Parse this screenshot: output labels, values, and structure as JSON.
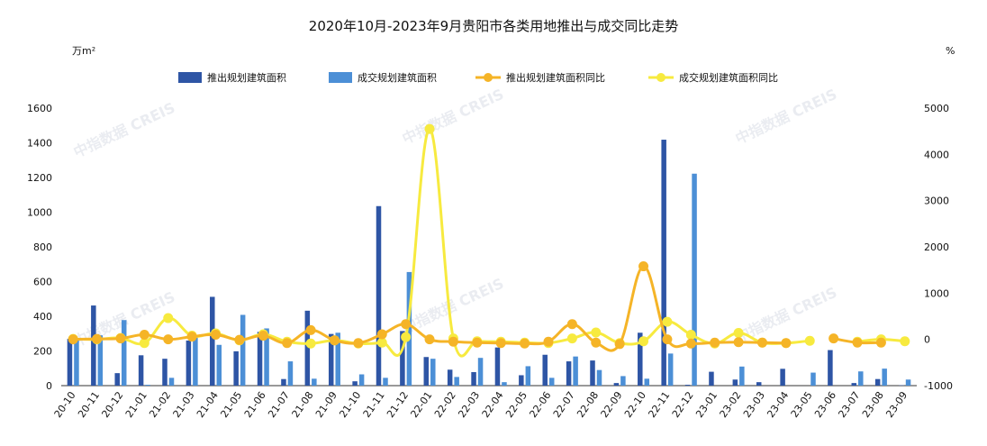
{
  "chart_data": {
    "type": "bar+line",
    "title": "2020年10月-2023年9月贵阳市各类用地推出与成交同比走势",
    "left_unit": "万m²",
    "right_unit": "%",
    "watermark": "中指数据 CREIS",
    "categories": [
      "20-10",
      "20-11",
      "20-12",
      "21-01",
      "21-02",
      "21-03",
      "21-04",
      "21-05",
      "21-06",
      "21-07",
      "21-08",
      "21-09",
      "21-10",
      "21-11",
      "21-12",
      "22-01",
      "22-02",
      "22-03",
      "22-04",
      "22-05",
      "22-06",
      "22-07",
      "22-08",
      "22-09",
      "22-10",
      "22-11",
      "22-12",
      "23-01",
      "23-02",
      "23-03",
      "23-04",
      "23-05",
      "23-06",
      "23-07",
      "23-08",
      "23-09"
    ],
    "y_left": {
      "min": 0,
      "max": 1600,
      "ticks": [
        0,
        200,
        400,
        600,
        800,
        1000,
        1200,
        1400,
        1600
      ]
    },
    "y_right": {
      "min": -1000,
      "max": 5000,
      "ticks": [
        -1000,
        0,
        1000,
        2000,
        3000,
        4000,
        5000
      ]
    },
    "series": [
      {
        "name": "推出规划建筑面积",
        "type": "bar",
        "axis": "left",
        "color": "#2e55a5",
        "values": [
          270,
          462,
          72,
          175,
          155,
          260,
          512,
          198,
          310,
          38,
          432,
          298,
          25,
          1035,
          315,
          165,
          92,
          78,
          220,
          60,
          178,
          140,
          145,
          15,
          305,
          1418,
          5,
          80,
          35,
          20,
          97,
          0,
          205,
          15,
          38,
          2
        ]
      },
      {
        "name": "成交规划建筑面积",
        "type": "bar",
        "axis": "left",
        "color": "#4c8fd6",
        "values": [
          275,
          290,
          378,
          5,
          45,
          290,
          235,
          408,
          330,
          140,
          40,
          305,
          65,
          45,
          655,
          155,
          50,
          160,
          20,
          112,
          45,
          168,
          90,
          55,
          40,
          185,
          1222,
          0,
          110,
          0,
          0,
          75,
          0,
          82,
          98,
          35
        ]
      },
      {
        "name": "推出规划建筑面积同比",
        "type": "line",
        "axis": "right",
        "color": "#f5b427",
        "values": [
          0,
          10,
          20,
          100,
          0,
          60,
          100,
          -10,
          80,
          -80,
          200,
          -20,
          -80,
          110,
          330,
          0,
          -50,
          -70,
          -80,
          -90,
          -50,
          330,
          -70,
          -100,
          1580,
          0,
          -90,
          -70,
          -60,
          -70,
          -80,
          null,
          20,
          -70,
          -70,
          null
        ]
      },
      {
        "name": "成交规划建筑面积同比",
        "type": "line",
        "axis": "right",
        "color": "#f7ea3f",
        "values": [
          10,
          0,
          30,
          -80,
          460,
          80,
          130,
          -20,
          110,
          -50,
          -90,
          -20,
          -90,
          -70,
          50,
          4550,
          20,
          -40,
          -50,
          -70,
          -80,
          20,
          150,
          -80,
          -40,
          380,
          100,
          -90,
          140,
          -70,
          -80,
          -30,
          null,
          -50,
          0,
          -40
        ]
      }
    ],
    "legend_position": "top-center",
    "grid": false
  }
}
